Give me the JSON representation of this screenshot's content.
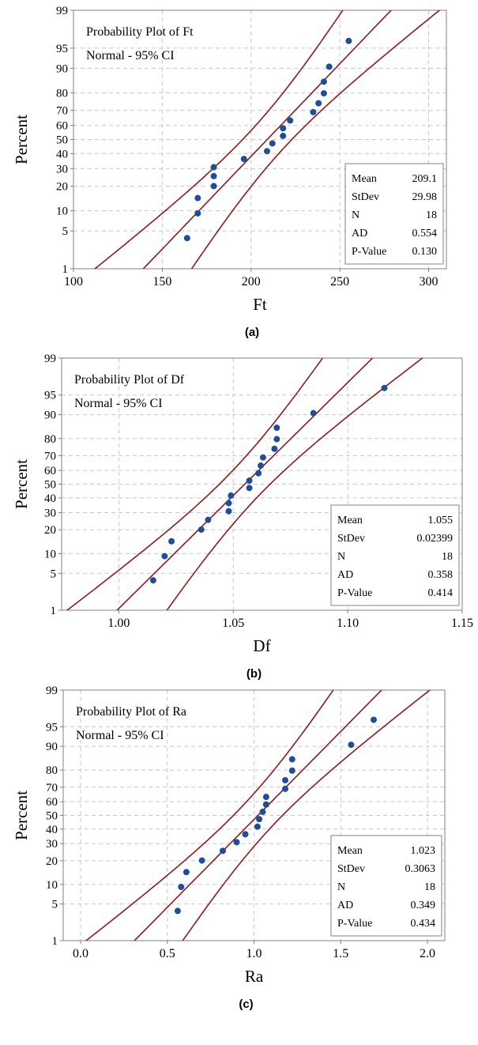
{
  "chart_data": [
    {
      "type": "scatter",
      "title": "Probability Plot of Ft",
      "subtitle": "Normal - 95% CI",
      "xlabel": "Ft",
      "ylabel": "Percent",
      "caption": "(a)",
      "xlim": [
        100,
        310
      ],
      "x_ticks": [
        100,
        150,
        200,
        250,
        300
      ],
      "x_tick_labels": [
        "100",
        "150",
        "200",
        "250",
        "300"
      ],
      "y_scale": "normal-probability",
      "y_ticks": [
        1,
        5,
        10,
        20,
        30,
        40,
        50,
        60,
        70,
        80,
        90,
        95,
        99
      ],
      "grid": true,
      "legend_position": "bottom-right",
      "stats": [
        {
          "label": "Mean",
          "value": "209.1"
        },
        {
          "label": "StDev",
          "value": "29.98"
        },
        {
          "label": "N",
          "value": "18"
        },
        {
          "label": "AD",
          "value": "0.554"
        },
        {
          "label": "P-Value",
          "value": "0.130"
        }
      ],
      "fit": {
        "mean": 209.1,
        "stdev": 29.98
      },
      "ci_lower_curve": [
        [
          113,
          1
        ],
        [
          140,
          7
        ],
        [
          170,
          25
        ],
        [
          200,
          50
        ],
        [
          230,
          72
        ],
        [
          260,
          89
        ],
        [
          300,
          97.5
        ],
        [
          312,
          99
        ]
      ],
      "ci_upper_curve": [
        [
          140,
          1
        ],
        [
          165,
          4
        ],
        [
          185,
          15
        ],
        [
          210,
          45
        ],
        [
          230,
          75
        ],
        [
          250,
          92
        ],
        [
          270,
          98.3
        ],
        [
          277,
          99
        ]
      ],
      "ci_mid_line": [
        [
          130,
          1
        ],
        [
          290,
          99
        ]
      ],
      "ci_lower_outer_curve": [
        [
          165,
          1
        ],
        [
          190,
          10
        ],
        [
          210,
          40
        ],
        [
          235,
          75
        ],
        [
          260,
          92
        ],
        [
          300,
          99
        ]
      ],
      "points": [
        [
          164,
          3.8
        ],
        [
          170,
          9.2
        ],
        [
          170,
          14.6
        ],
        [
          179,
          20.1
        ],
        [
          179,
          25.5
        ],
        [
          179,
          30.9
        ],
        [
          196,
          36.3
        ],
        [
          209,
          41.7
        ],
        [
          212,
          47.2
        ],
        [
          218,
          52.6
        ],
        [
          218,
          58.0
        ],
        [
          222,
          63.4
        ],
        [
          235,
          68.9
        ],
        [
          238,
          74.3
        ],
        [
          241,
          79.7
        ],
        [
          241,
          85.1
        ],
        [
          244,
          90.5
        ],
        [
          255,
          96.2
        ]
      ]
    },
    {
      "type": "scatter",
      "title": "Probability Plot of Df",
      "subtitle": "Normal - 95% CI",
      "xlabel": "Df",
      "ylabel": "Percent",
      "caption": "(b)",
      "xlim": [
        0.975,
        1.15
      ],
      "x_ticks": [
        1.0,
        1.05,
        1.1,
        1.15
      ],
      "x_tick_labels": [
        "1.00",
        "1.05",
        "1.10",
        "1.15"
      ],
      "y_scale": "normal-probability",
      "y_ticks": [
        1,
        5,
        10,
        20,
        30,
        40,
        50,
        60,
        70,
        80,
        90,
        95,
        99
      ],
      "grid": true,
      "legend_position": "bottom-right",
      "stats": [
        {
          "label": "Mean",
          "value": "1.055"
        },
        {
          "label": "StDev",
          "value": "0.02399"
        },
        {
          "label": "N",
          "value": "18"
        },
        {
          "label": "AD",
          "value": "0.358"
        },
        {
          "label": "P-Value",
          "value": "0.414"
        }
      ],
      "fit": {
        "mean": 1.055,
        "stdev": 0.02399
      },
      "points": [
        [
          1.015,
          3.8
        ],
        [
          1.02,
          9.2
        ],
        [
          1.023,
          14.6
        ],
        [
          1.036,
          20.1
        ],
        [
          1.039,
          25.5
        ],
        [
          1.048,
          30.9
        ],
        [
          1.048,
          36.3
        ],
        [
          1.049,
          41.7
        ],
        [
          1.057,
          47.2
        ],
        [
          1.057,
          52.6
        ],
        [
          1.061,
          58.0
        ],
        [
          1.062,
          63.4
        ],
        [
          1.063,
          68.9
        ],
        [
          1.068,
          74.3
        ],
        [
          1.069,
          79.7
        ],
        [
          1.069,
          85.1
        ],
        [
          1.085,
          90.5
        ],
        [
          1.116,
          96.2
        ]
      ]
    },
    {
      "type": "scatter",
      "title": "Probability Plot of Ra",
      "subtitle": "Normal - 95% CI",
      "xlabel": "Ra",
      "ylabel": "Percent",
      "caption": "(c)",
      "xlim": [
        -0.1,
        2.1
      ],
      "x_ticks": [
        0.0,
        0.5,
        1.0,
        1.5,
        2.0
      ],
      "x_tick_labels": [
        "0.0",
        "0.5",
        "1.0",
        "1.5",
        "2.0"
      ],
      "y_scale": "normal-probability",
      "y_ticks": [
        1,
        5,
        10,
        20,
        30,
        40,
        50,
        60,
        70,
        80,
        90,
        95,
        99
      ],
      "grid": true,
      "legend_position": "bottom-right",
      "stats": [
        {
          "label": "Mean",
          "value": "1.023"
        },
        {
          "label": "StDev",
          "value": "0.3063"
        },
        {
          "label": "N",
          "value": "18"
        },
        {
          "label": "AD",
          "value": "0.349"
        },
        {
          "label": "P-Value",
          "value": "0.434"
        }
      ],
      "fit": {
        "mean": 1.023,
        "stdev": 0.3063
      },
      "points": [
        [
          0.56,
          3.8
        ],
        [
          0.58,
          9.2
        ],
        [
          0.61,
          14.6
        ],
        [
          0.7,
          20.1
        ],
        [
          0.82,
          25.5
        ],
        [
          0.9,
          30.9
        ],
        [
          0.95,
          36.3
        ],
        [
          1.02,
          41.7
        ],
        [
          1.03,
          47.2
        ],
        [
          1.05,
          52.6
        ],
        [
          1.07,
          58.0
        ],
        [
          1.07,
          63.4
        ],
        [
          1.18,
          68.9
        ],
        [
          1.18,
          74.3
        ],
        [
          1.22,
          79.7
        ],
        [
          1.22,
          85.1
        ],
        [
          1.56,
          90.5
        ],
        [
          1.69,
          96.2
        ]
      ]
    }
  ],
  "colors": {
    "frame": "#808080",
    "grid": "#c8c8c8",
    "fit_line": "#8b1a1a",
    "points": "#1f4e99",
    "text": "#000000"
  }
}
